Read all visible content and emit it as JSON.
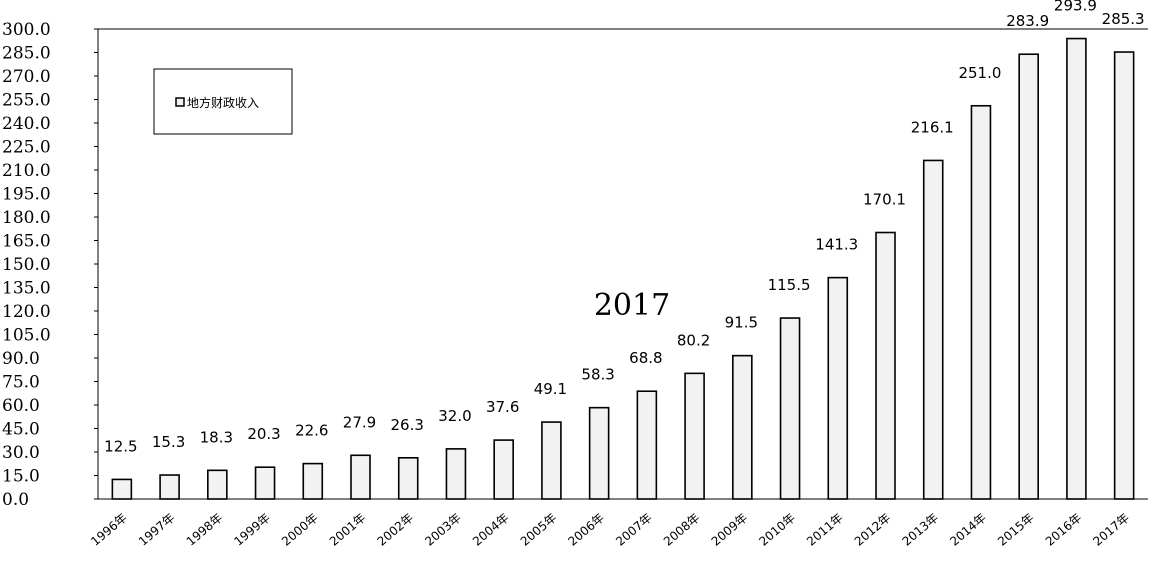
{
  "chart_data": {
    "type": "bar",
    "title": "",
    "xlabel": "",
    "ylabel": "",
    "annotation": "2017",
    "categories": [
      "1996年",
      "1997年",
      "1998年",
      "1999年",
      "2000年",
      "2001年",
      "2002年",
      "2003年",
      "2004年",
      "2005年",
      "2006年",
      "2007年",
      "2008年",
      "2009年",
      "2010年",
      "2011年",
      "2012年",
      "2013年",
      "2014年",
      "2015年",
      "2016年",
      "2017年"
    ],
    "series": [
      {
        "name": "地方财政收入",
        "values": [
          12.5,
          15.3,
          18.3,
          20.3,
          22.6,
          27.9,
          26.3,
          32.0,
          37.6,
          49.1,
          58.3,
          68.8,
          80.2,
          91.5,
          115.5,
          141.3,
          170.1,
          216.1,
          251.0,
          283.9,
          293.9,
          285.3
        ],
        "labels": [
          "12.5",
          "15.3",
          "18.3",
          "20.3",
          "22.6",
          "27.9",
          "26.3",
          "32.0",
          "37.6",
          "49.1",
          "58.3",
          "68.8",
          "80.2",
          "91.5",
          "115.5",
          "141.3",
          "170.1",
          "216.1",
          "251.0",
          "283.9",
          "293.9",
          "285.3"
        ]
      }
    ],
    "yticks": [
      "0.0",
      "15.0",
      "30.0",
      "45.0",
      "60.0",
      "75.0",
      "90.0",
      "105.0",
      "120.0",
      "135.0",
      "150.0",
      "165.0",
      "180.0",
      "195.0",
      "210.0",
      "225.0",
      "240.0",
      "255.0",
      "270.0",
      "285.0",
      "300.0"
    ],
    "ylim": [
      0,
      300
    ],
    "grid": false,
    "legend_position": "top-left",
    "colors": {
      "bar_fill": "#f2f2f2",
      "bar_stroke": "#000000"
    }
  }
}
